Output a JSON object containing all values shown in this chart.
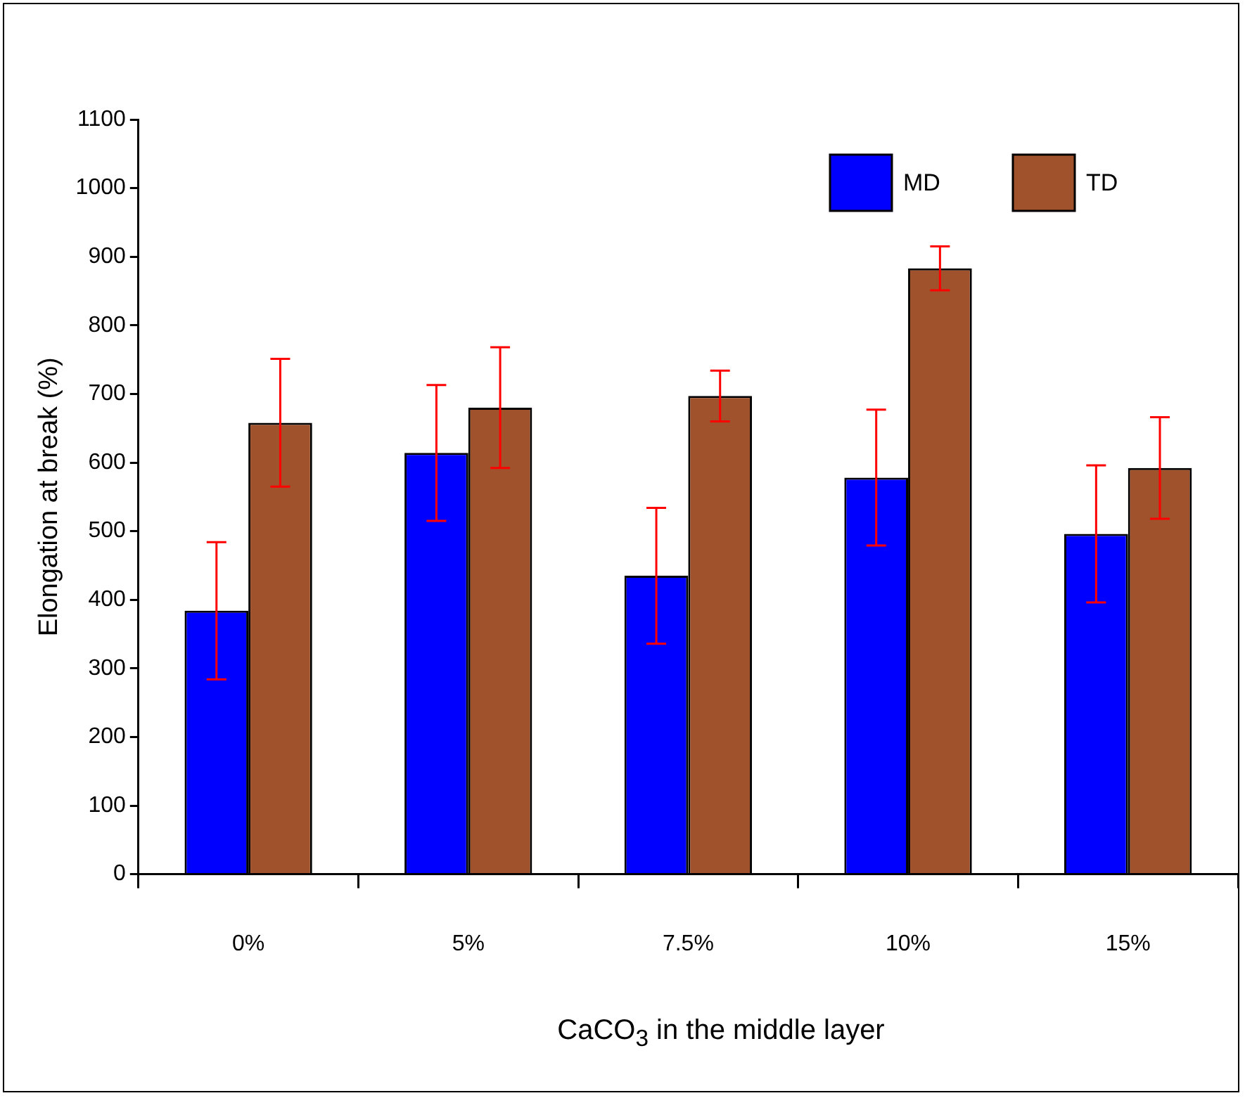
{
  "chart_data": {
    "type": "bar",
    "xlabel": "CaCO$_{3}$ in the middle layer",
    "ylabel": "Elongation at break (%)",
    "categories": [
      "0%",
      "5%",
      "7.5%",
      "10%",
      "15%"
    ],
    "series": [
      {
        "name": "MD",
        "color": "#0000ff",
        "values": [
          384,
          614,
          435,
          578,
          496
        ],
        "errors": [
          100,
          99,
          99,
          99,
          100
        ]
      },
      {
        "name": "TD",
        "color": "#a0522d",
        "values": [
          658,
          680,
          697,
          883,
          592
        ],
        "errors": [
          93,
          88,
          37,
          32,
          74
        ]
      }
    ],
    "ylim": [
      0,
      1100
    ],
    "yticks": [
      0,
      100,
      200,
      300,
      400,
      500,
      600,
      700,
      800,
      900,
      1000,
      1100
    ],
    "grid": false,
    "legend": "top right"
  }
}
